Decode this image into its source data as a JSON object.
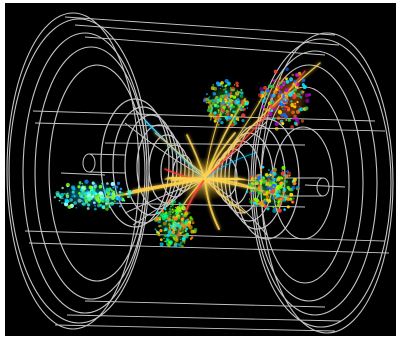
{
  "image": {
    "background_color": "#000000",
    "frame_color": "#ffffff",
    "wire_color": "#e8e8e8",
    "jets": [
      {
        "name": "jet-upper-center",
        "palette": [
          "#2ecc40",
          "#7fff00",
          "#00e5ff",
          "#ffdc00",
          "#ff4136",
          "#1e90ff",
          "#9acd32"
        ]
      },
      {
        "name": "jet-upper-right",
        "palette": [
          "#ff851b",
          "#ff4136",
          "#2ecc40",
          "#00e5ff",
          "#1e6bff",
          "#ffdc00",
          "#b10dc9"
        ]
      },
      {
        "name": "jet-left",
        "palette": [
          "#00e5ff",
          "#39ffdc",
          "#2ecc40",
          "#7fff00",
          "#1e90ff",
          "#aaffff"
        ]
      },
      {
        "name": "jet-lower-center",
        "palette": [
          "#2ecc40",
          "#7fff00",
          "#ffdc00",
          "#ff851b",
          "#00e5ff",
          "#00ff7f"
        ]
      },
      {
        "name": "jet-right",
        "palette": [
          "#2ecc40",
          "#ff851b",
          "#ffdc00",
          "#1e6bff",
          "#00e5ff",
          "#7fff00",
          "#ff4136"
        ]
      }
    ],
    "tracks_color": "#ffd34d",
    "secondary_track_colors": [
      "#ff4136",
      "#00bfff",
      "#ffffff"
    ]
  }
}
